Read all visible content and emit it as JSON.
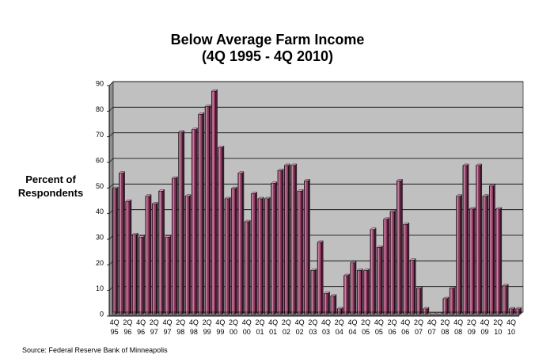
{
  "chart_data": {
    "type": "bar",
    "title": [
      "Below Average Farm Income",
      "(4Q 1995 - 4Q 2010)"
    ],
    "ylabel": [
      "Percent of",
      "Respondents"
    ],
    "xlabel": "",
    "source": "Source: Federal Reserve Bank of Minneapolis",
    "ylim": [
      0,
      90
    ],
    "yticks": [
      0,
      10,
      20,
      30,
      40,
      50,
      60,
      70,
      80,
      90
    ],
    "grid": true,
    "legend": "none",
    "colors": {
      "plot_bg": "#c0c0c0",
      "bar_fill": "#8b3a62",
      "bar_edge": "#000000",
      "bar_highlight": "#d79ab4"
    },
    "x_tick_labels": [
      [
        "4Q",
        "95"
      ],
      [
        "2Q",
        "96"
      ],
      [
        "4Q",
        "96"
      ],
      [
        "2Q",
        "97"
      ],
      [
        "4Q",
        "97"
      ],
      [
        "2Q",
        "98"
      ],
      [
        "4Q",
        "98"
      ],
      [
        "2Q",
        "99"
      ],
      [
        "4Q",
        "99"
      ],
      [
        "2Q",
        "00"
      ],
      [
        "4Q",
        "00"
      ],
      [
        "2Q",
        "01"
      ],
      [
        "4Q",
        "01"
      ],
      [
        "2Q",
        "02"
      ],
      [
        "4Q",
        "02"
      ],
      [
        "2Q",
        "03"
      ],
      [
        "4Q",
        "03"
      ],
      [
        "2Q",
        "04"
      ],
      [
        "4Q",
        "04"
      ],
      [
        "2Q",
        "05"
      ],
      [
        "4Q",
        "05"
      ],
      [
        "2Q",
        "06"
      ],
      [
        "4Q",
        "06"
      ],
      [
        "2Q",
        "07"
      ],
      [
        "4Q",
        "07"
      ],
      [
        "2Q",
        "08"
      ],
      [
        "4Q",
        "08"
      ],
      [
        "2Q",
        "09"
      ],
      [
        "4Q",
        "09"
      ],
      [
        "2Q",
        "10"
      ],
      [
        "4Q",
        "10"
      ]
    ],
    "values": [
      49,
      55,
      44,
      31,
      30,
      46,
      43,
      48,
      30,
      53,
      71,
      46,
      72,
      78,
      81,
      87,
      65,
      45,
      49,
      55,
      36,
      47,
      45,
      45,
      51,
      56,
      58,
      58,
      48,
      52,
      17,
      28,
      8,
      7,
      2,
      15,
      20,
      17,
      17,
      33,
      26,
      37,
      40,
      52,
      35,
      21,
      10,
      2,
      0,
      0,
      6,
      10,
      46,
      58,
      41,
      58,
      46,
      50,
      41,
      11,
      2,
      2
    ]
  }
}
